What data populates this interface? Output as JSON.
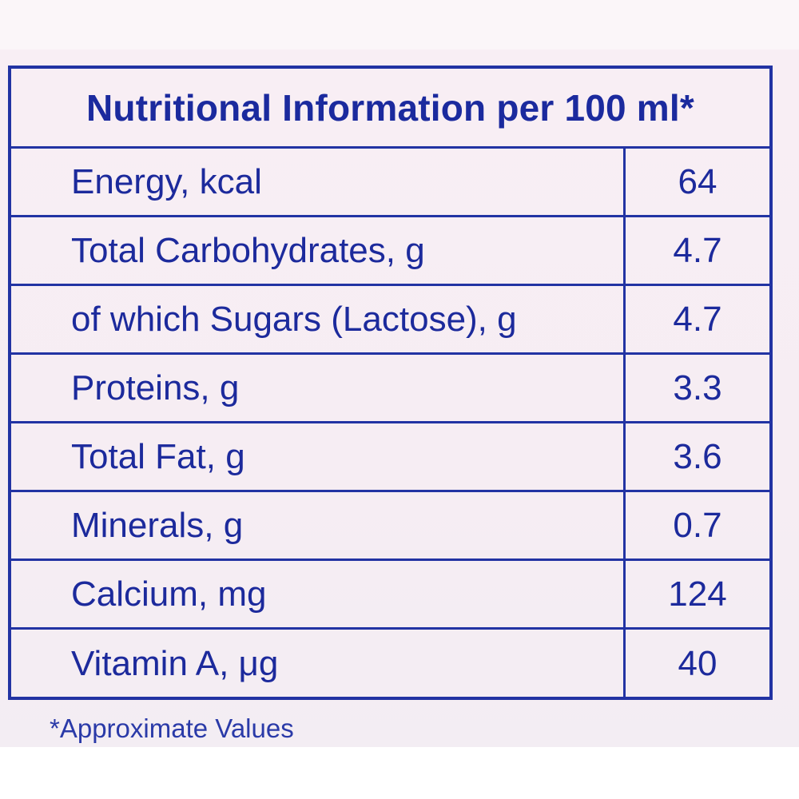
{
  "title": "Nutritional Information per 100 ml*",
  "rows": [
    {
      "label": "Energy, kcal",
      "value": "64"
    },
    {
      "label": "Total Carbohydrates, g",
      "value": "4.7"
    },
    {
      "label": "of which Sugars (Lactose), g",
      "value": "4.7"
    },
    {
      "label": "Proteins, g",
      "value": "3.3"
    },
    {
      "label": "Total Fat, g",
      "value": "3.6"
    },
    {
      "label": "Minerals, g",
      "value": "0.7"
    },
    {
      "label": "Calcium, mg",
      "value": "124"
    },
    {
      "label": "Vitamin A, μg",
      "value": "40"
    }
  ],
  "footnote": "*Approximate Values",
  "colors": {
    "ink": "#1b2a9e",
    "background": "#f7eff4"
  }
}
